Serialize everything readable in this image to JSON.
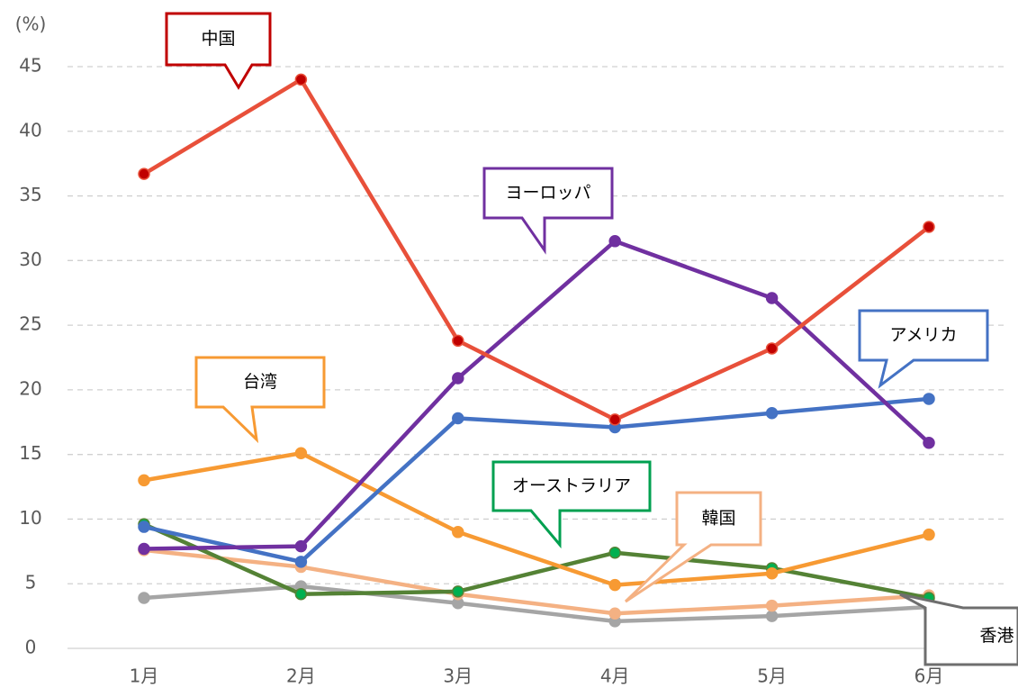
{
  "chart_data": {
    "type": "line",
    "y_label": "(%)",
    "categories": [
      "1月",
      "2月",
      "3月",
      "4月",
      "5月",
      "6月"
    ],
    "ylim": [
      0,
      45
    ],
    "yticks": [
      0,
      5,
      10,
      15,
      20,
      25,
      30,
      35,
      40,
      45
    ],
    "grid": true,
    "series": [
      {
        "name": "香港",
        "color": "#a5a5a5",
        "marker_color": "#a5a5a5",
        "values": [
          3.9,
          4.8,
          3.5,
          2.1,
          2.5,
          3.2
        ]
      },
      {
        "name": "韓国",
        "color": "#f4b183",
        "marker_color": "#f4b183",
        "values": [
          7.6,
          6.3,
          4.2,
          2.7,
          3.3,
          4.1
        ]
      },
      {
        "name": "オーストラリア",
        "color": "#548235",
        "marker_color": "#00b050",
        "values": [
          9.6,
          4.2,
          4.4,
          7.4,
          6.2,
          3.9
        ]
      },
      {
        "name": "台湾",
        "color": "#f79a33",
        "marker_color": "#f79a33",
        "values": [
          13.0,
          15.1,
          9.0,
          4.9,
          5.8,
          8.8
        ]
      },
      {
        "name": "アメリカ",
        "color": "#4472c4",
        "marker_color": "#4472c4",
        "values": [
          9.4,
          6.7,
          17.8,
          17.1,
          18.2,
          19.3
        ]
      },
      {
        "name": "ヨーロッパ",
        "color": "#7030a0",
        "marker_color": "#7030a0",
        "values": [
          7.7,
          7.9,
          20.9,
          31.5,
          27.1,
          15.9
        ]
      },
      {
        "name": "中国",
        "color": "#e8503a",
        "marker_color": "#c00000",
        "values": [
          36.7,
          44.0,
          23.8,
          17.7,
          23.2,
          32.6
        ]
      }
    ]
  }
}
